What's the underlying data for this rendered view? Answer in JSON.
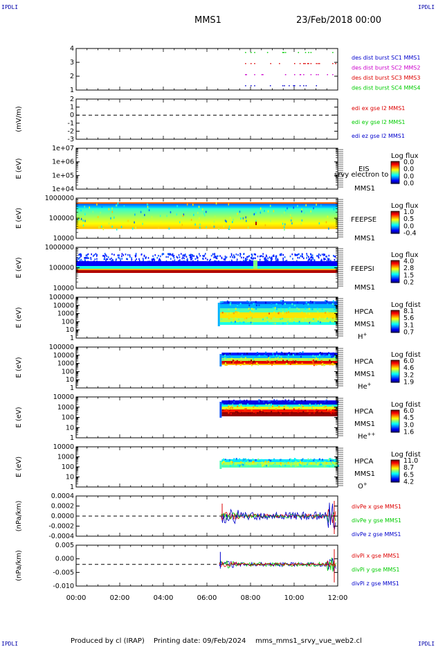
{
  "corner_labels": {
    "top_left": "IPDLI",
    "top_right": "IPDLI",
    "bottom_left": "IPDLI",
    "bottom_right": "IPDLI"
  },
  "header": {
    "spacecraft": "MMS1",
    "datetime": "23/Feb/2018 00:00"
  },
  "footer": {
    "produced_by": "Produced by cl (IRAP)",
    "printing_date": "Printing date: 09/Feb/2024",
    "script": "mms_mms1_srvy_vue_web2.cl"
  },
  "colors": {
    "red": "#dd0000",
    "green": "#00cc00",
    "blue": "#0000cc",
    "magenta": "#cc00cc",
    "black": "#000000"
  },
  "chart_data": {
    "type": "multi-panel time series",
    "x_axis": {
      "range": [
        "00:00",
        "12:00"
      ],
      "ticks": [
        "00:00",
        "02:00",
        "04:00",
        "06:00",
        "08:00",
        "10:00",
        "12:00"
      ]
    },
    "panels": [
      {
        "id": "des_burst",
        "type": "scatter",
        "ylabel": "",
        "yticks": [
          "4",
          "3",
          "2",
          "1"
        ],
        "legend": [
          {
            "name": "des dist burst SC1 MMS1",
            "color": "#0000cc"
          },
          {
            "name": "des dist burst SC2 MMS2",
            "color": "#cc00cc"
          },
          {
            "name": "des dist burst SC3 MMS3",
            "color": "#dd0000"
          },
          {
            "name": "des dist burst SC4 MMS4",
            "color": "#00cc00"
          }
        ],
        "burst_times": [
          "07:45",
          "08:00",
          "08:10",
          "09:35",
          "10:00",
          "10:15",
          "10:25",
          "10:45",
          "11:00",
          "11:45"
        ]
      },
      {
        "id": "edi",
        "type": "line",
        "ylabel": "(mV/m)",
        "yticks": [
          "2",
          "1",
          "0",
          "-1",
          "-2",
          "-3"
        ],
        "legend": [
          {
            "name": "edi ex gse l2 MMS1",
            "color": "#dd0000"
          },
          {
            "name": "edi ey gse l2 MMS1",
            "color": "#00cc00"
          },
          {
            "name": "edi ez gse l2 MMS1",
            "color": "#0000cc"
          }
        ]
      },
      {
        "id": "eis",
        "type": "heatmap",
        "ylabel": "E (eV)",
        "yticks": [
          "1e+07",
          "1e+06",
          "1e+05",
          "1e+04"
        ],
        "instrument": "EIS",
        "sc": "MMS1",
        "overlay_text": "srvy electron to",
        "colorbar": {
          "title": "Log flux",
          "ticks": [
            "0.0",
            "0.0",
            "0.0",
            "0.0"
          ]
        }
      },
      {
        "id": "feeps_e",
        "type": "heatmap",
        "ylabel": "E (eV)",
        "yticks": [
          "1000000",
          "100000",
          "10000"
        ],
        "instrument": "FEEPSE",
        "sc": "MMS1",
        "colorbar": {
          "title": "Log flux",
          "ticks": [
            "1.0",
            "0.5",
            "0.0",
            "-0.4"
          ]
        }
      },
      {
        "id": "feeps_i",
        "type": "heatmap",
        "ylabel": "E (eV)",
        "yticks": [
          "1000000",
          "100000",
          "10000"
        ],
        "instrument": "FEEPSI",
        "sc": "MMS1",
        "colorbar": {
          "title": "Log flux",
          "ticks": [
            "4.0",
            "2.8",
            "1.5",
            "0.2"
          ]
        }
      },
      {
        "id": "hpca_h",
        "type": "heatmap",
        "ylabel": "E (eV)",
        "yticks": [
          "100000",
          "10000",
          "1000",
          "100",
          "10",
          "1"
        ],
        "instrument": "HPCA",
        "sc": "MMS1",
        "species": "H",
        "species_sup": "+",
        "colorbar": {
          "title": "Log fdist",
          "ticks": [
            "8.1",
            "5.6",
            "3.1",
            "0.7"
          ]
        },
        "data_start": "06:30"
      },
      {
        "id": "hpca_he",
        "type": "heatmap",
        "ylabel": "E (eV)",
        "yticks": [
          "100000",
          "10000",
          "1000",
          "100",
          "10",
          "1"
        ],
        "instrument": "HPCA",
        "sc": "MMS1",
        "species": "He",
        "species_sup": "+",
        "colorbar": {
          "title": "Log fdist",
          "ticks": [
            "6.0",
            "4.6",
            "3.2",
            "1.9"
          ]
        },
        "data_start": "06:35"
      },
      {
        "id": "hpca_hepp",
        "type": "heatmap",
        "ylabel": "E (eV)",
        "yticks": [
          "10000",
          "1000",
          "100",
          "10",
          "1"
        ],
        "instrument": "HPCA",
        "sc": "MMS1",
        "species": "He",
        "species_sup": "++",
        "colorbar": {
          "title": "Log fdist",
          "ticks": [
            "6.0",
            "4.5",
            "3.0",
            "1.6"
          ]
        },
        "data_start": "06:35"
      },
      {
        "id": "hpca_o",
        "type": "heatmap",
        "ylabel": "E (eV)",
        "yticks": [
          "10000",
          "1000",
          "100",
          "10",
          "1"
        ],
        "instrument": "HPCA",
        "sc": "MMS1",
        "species": "O",
        "species_sup": "+",
        "colorbar": {
          "title": "Log fdist",
          "ticks": [
            "11.0",
            "8.7",
            "6.5",
            "4.2"
          ]
        },
        "data_start": "06:35"
      },
      {
        "id": "divpe",
        "type": "line",
        "ylabel": "(nPa/km)",
        "yticks": [
          "0.0004",
          "0.0002",
          "0.0000",
          "-0.0002",
          "-0.0004"
        ],
        "legend": [
          {
            "name": "divPe x gse MMS1",
            "color": "#dd0000"
          },
          {
            "name": "divPe y gse MMS1",
            "color": "#00cc00"
          },
          {
            "name": "divPe z gse MMS1",
            "color": "#0000cc"
          }
        ],
        "data_start": "06:40"
      },
      {
        "id": "divpi",
        "type": "line",
        "ylabel": "(nPa/km)",
        "yticks": [
          "0.005",
          "0.000",
          "-0.005",
          "-0.010"
        ],
        "legend": [
          {
            "name": "divPi x gse MMS1",
            "color": "#dd0000"
          },
          {
            "name": "divPi y gse MMS1",
            "color": "#00cc00"
          },
          {
            "name": "divPi z gse MMS1",
            "color": "#0000cc"
          }
        ],
        "data_start": "06:35"
      }
    ]
  }
}
